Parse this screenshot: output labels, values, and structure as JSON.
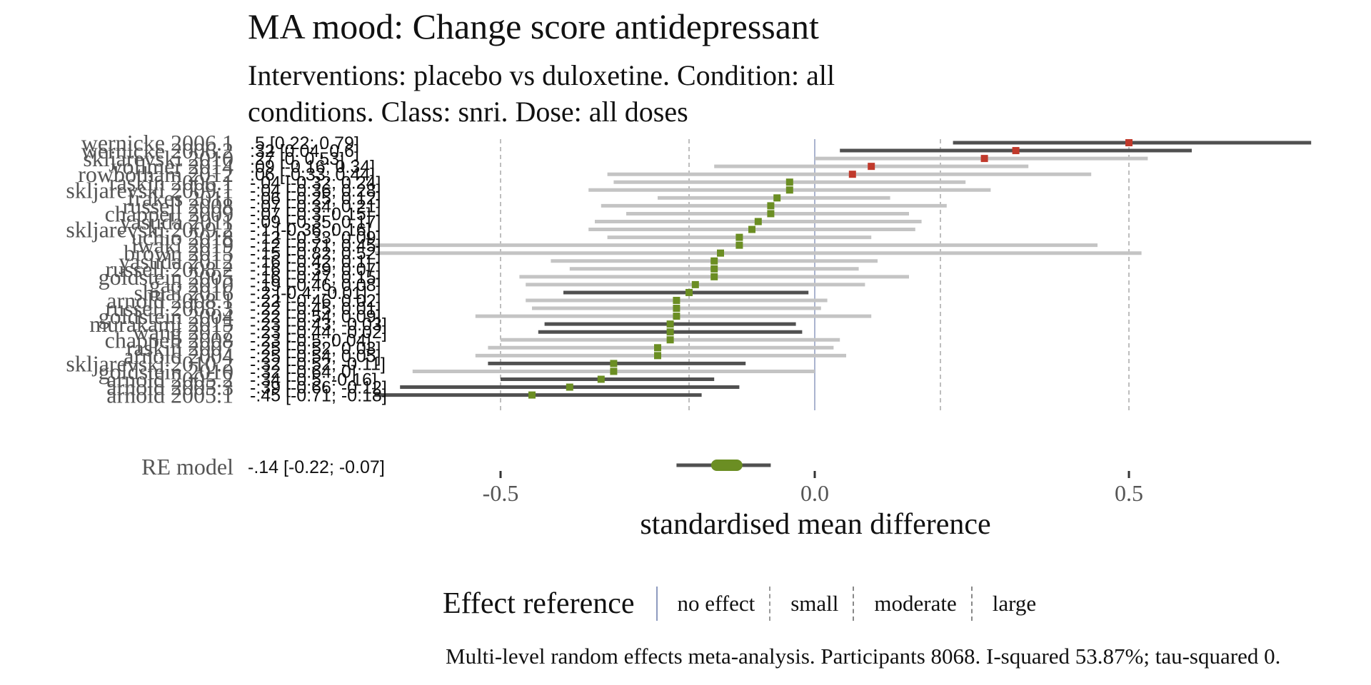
{
  "title": "MA mood: Change score antidepressant",
  "subtitle": "Interventions: placebo vs duloxetine. Condition: all conditions. Class: snri. Dose: all doses",
  "footnote": "Multi-level random effects meta-analysis. Participants 8068. I-squared 53.87%; tau-squared 0.",
  "legend": {
    "title": "Effect reference",
    "items": [
      {
        "label": "no effect",
        "color": "#8e9bbf",
        "style": "solid"
      },
      {
        "label": "small",
        "color": "#9a9a9a",
        "style": "dashed"
      },
      {
        "label": "moderate",
        "color": "#888888",
        "style": "dashed"
      },
      {
        "label": "large",
        "color": "#888888",
        "style": "dashed"
      }
    ]
  },
  "colors": {
    "positive_marker": "#c0392b",
    "negative_marker": "#6b8e23",
    "ci_significant": "#505050",
    "ci_nonsignificant": "#c4c4c4",
    "reference": "#8e9bbf",
    "label_text": "#555555"
  },
  "chart_data": {
    "type": "forest",
    "xlabel": "standardised mean difference",
    "xlim": [
      -0.92,
      0.8
    ],
    "xticks": [
      -0.5,
      0.0,
      0.5
    ],
    "xtick_labels": [
      "-0.5",
      "0.0",
      "0.5"
    ],
    "reference_lines": [
      {
        "x": 0.0,
        "label": "no effect"
      },
      {
        "x": 0.2,
        "label": "small"
      },
      {
        "x": -0.2,
        "label": "small"
      },
      {
        "x": 0.5,
        "label": "large"
      },
      {
        "x": -0.5,
        "label": "large"
      }
    ],
    "studies": [
      {
        "label": "wernicke 2006.1",
        "estimate": 0.5,
        "lower": 0.22,
        "upper": 0.79,
        "ci_text": ".5 [0.22; 0.79]"
      },
      {
        "label": "wernicke 2006.2",
        "estimate": 0.32,
        "lower": 0.04,
        "upper": 0.6,
        "ci_text": ".32 [0.04; 0.6]"
      },
      {
        "label": "skljarevski 2010",
        "estimate": 0.27,
        "lower": 0.0,
        "upper": 0.53,
        "ci_text": ".27 [0; 0.53]"
      },
      {
        "label": "vollmer 2014",
        "estimate": 0.09,
        "lower": -0.16,
        "upper": 0.34,
        "ci_text": ".09 [-0.16; 0.34]"
      },
      {
        "label": "rowbotham 2012",
        "estimate": 0.06,
        "lower": -0.33,
        "upper": 0.44,
        "ci_text": ".06 [-0.33; 0.44]"
      },
      {
        "label": "raskin 2006.1",
        "estimate": -0.04,
        "lower": -0.32,
        "upper": 0.24,
        "ci_text": "-.04 [-0.32; 0.24]"
      },
      {
        "label": "skljarevski 2009.1",
        "estimate": -0.04,
        "lower": -0.36,
        "upper": 0.28,
        "ci_text": "-.04 [-0.36; 0.28]"
      },
      {
        "label": "frakes 2011",
        "estimate": -0.06,
        "lower": -0.25,
        "upper": 0.12,
        "ci_text": "-.06 [-0.25; 0.12]"
      },
      {
        "label": "russell 2008",
        "estimate": -0.07,
        "lower": -0.34,
        "upper": 0.21,
        "ci_text": "-.07 [-0.34; 0.21]"
      },
      {
        "label": "chappell 2009",
        "estimate": -0.07,
        "lower": -0.3,
        "upper": 0.15,
        "ci_text": "-.07 [-0.3; 0.15]"
      },
      {
        "label": "yasuda 2011",
        "estimate": -0.09,
        "lower": -0.35,
        "upper": 0.17,
        "ci_text": "-.09 [-0.35; 0.17]"
      },
      {
        "label": "skljarevski 2009.2",
        "estimate": -0.1,
        "lower": -0.36,
        "upper": 0.16,
        "ci_text": "-.1 [-0.36; 0.16]"
      },
      {
        "label": "uchio 2018",
        "estimate": -0.12,
        "lower": -0.33,
        "upper": 0.09,
        "ci_text": "-.12 [-0.33; 0.09]"
      },
      {
        "label": "iwaki 2019",
        "estimate": -0.12,
        "lower": -0.71,
        "upper": 0.45,
        "ci_text": "-.12 [-0.71; 0.45]"
      },
      {
        "label": "brown 2015",
        "estimate": -0.15,
        "lower": -0.82,
        "upper": 0.52,
        "ci_text": "-.15 [-0.82; 0.52]"
      },
      {
        "label": "yasuda 2012",
        "estimate": -0.16,
        "lower": -0.42,
        "upper": 0.1,
        "ci_text": "-.16 [-0.42; 0.1]"
      },
      {
        "label": "russell 2008.2",
        "estimate": -0.16,
        "lower": -0.39,
        "upper": 0.07,
        "ci_text": "-.16 [-0.39; 0.07]"
      },
      {
        "label": "goldstein 2005",
        "estimate": -0.16,
        "lower": -0.47,
        "upper": 0.15,
        "ci_text": "-.16 [-0.47; 0.15]"
      },
      {
        "label": "gao 2010",
        "estimate": -0.19,
        "lower": -0.46,
        "upper": 0.08,
        "ci_text": "-.19 [-0.46; 0.08]"
      },
      {
        "label": "shuai 2016",
        "estimate": -0.2,
        "lower": -0.4,
        "upper": -0.01,
        "ci_text": "-.2 [-0.4; -0.01]"
      },
      {
        "label": "arnold 2008.1",
        "estimate": -0.22,
        "lower": -0.46,
        "upper": 0.02,
        "ci_text": "-.22 [-0.46; 0.02]"
      },
      {
        "label": "russell 2008.3",
        "estimate": -0.22,
        "lower": -0.45,
        "upper": 0.01,
        "ci_text": "-.22 [-0.45; 0.01]"
      },
      {
        "label": "goldstein 2004",
        "estimate": -0.22,
        "lower": -0.54,
        "upper": 0.09,
        "ci_text": "-.22 [-0.54; 0.09]"
      },
      {
        "label": "murakami 2015",
        "estimate": -0.23,
        "lower": -0.43,
        "upper": -0.03,
        "ci_text": "-.23 [-0.43; -0.03]"
      },
      {
        "label": "wang 2017",
        "estimate": -0.23,
        "lower": -0.44,
        "upper": -0.02,
        "ci_text": "-.23 [-0.44; -0.02]"
      },
      {
        "label": "chappell 2008",
        "estimate": -0.23,
        "lower": -0.5,
        "upper": 0.04,
        "ci_text": "-.23 [-0.5; 0.04]"
      },
      {
        "label": "raskin 2007",
        "estimate": -0.25,
        "lower": -0.52,
        "upper": 0.03,
        "ci_text": "-.25 [-0.52; 0.03]"
      },
      {
        "label": "arnold 2004",
        "estimate": -0.25,
        "lower": -0.54,
        "upper": 0.05,
        "ci_text": "-.25 [-0.54; 0.05]"
      },
      {
        "label": "skljarevski 2010.2",
        "estimate": -0.32,
        "lower": -0.52,
        "upper": -0.11,
        "ci_text": "-.32 [-0.52; -0.11]"
      },
      {
        "label": "goldstein 2010",
        "estimate": -0.32,
        "lower": -0.64,
        "upper": 0.0,
        "ci_text": "-.32 [-0.64; 0]"
      },
      {
        "label": "arnold 2005.2",
        "estimate": -0.34,
        "lower": -0.5,
        "upper": -0.16,
        "ci_text": "-.34 [-0.5; -0.16]"
      },
      {
        "label": "arnold 2005.3",
        "estimate": -0.39,
        "lower": -0.66,
        "upper": -0.12,
        "ci_text": "-.39 [-0.66; -0.12]"
      },
      {
        "label": "arnold 2005.1",
        "estimate": -0.45,
        "lower": -0.71,
        "upper": -0.18,
        "ci_text": "-.45 [-0.71; -0.18]"
      }
    ],
    "summary": {
      "label": "RE model",
      "estimate": -0.14,
      "lower": -0.22,
      "upper": -0.07,
      "ci_text": "-.14 [-0.22; -0.07]"
    }
  }
}
